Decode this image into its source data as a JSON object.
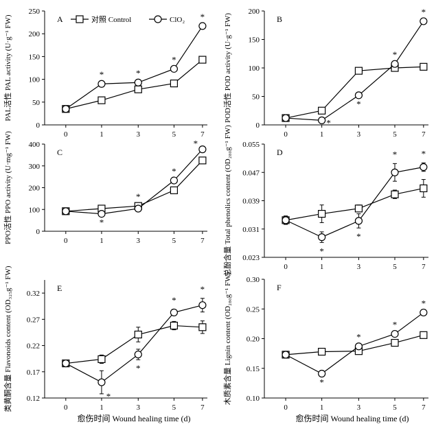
{
  "xlabel": "愈伤时间 Wound healing time (d)",
  "chart_data": [
    {
      "type": "line",
      "panel": "A",
      "ylabel": "PAL活性 PAL activity (U·g⁻¹ FW)",
      "ylim": [
        0,
        250
      ],
      "yticks": [
        0,
        50,
        100,
        150,
        200,
        250
      ],
      "ytick_labels": [
        "0",
        "50",
        "100",
        "150",
        "200",
        "250"
      ],
      "x": [
        0,
        1,
        3,
        5,
        7
      ],
      "series": [
        {
          "name": "对照 Control",
          "marker": "square",
          "values": [
            35,
            54,
            78,
            91,
            143
          ],
          "err": [
            4,
            5,
            5,
            6,
            6
          ]
        },
        {
          "name": "ClO₂",
          "marker": "circle",
          "values": [
            35,
            90,
            93,
            123,
            217
          ],
          "err": [
            4,
            6,
            5,
            4,
            5
          ]
        }
      ],
      "annotations": [
        {
          "x": 1,
          "y": 90,
          "text": "*",
          "pos": "above"
        },
        {
          "x": 3,
          "y": 93,
          "text": "*",
          "pos": "above"
        },
        {
          "x": 5,
          "y": 123,
          "text": "*",
          "pos": "above"
        },
        {
          "x": 7,
          "y": 217,
          "text": "*",
          "pos": "above"
        }
      ],
      "legend": "top"
    },
    {
      "type": "line",
      "panel": "B",
      "ylabel": "POD活性 POD activity (U·g⁻¹ FW)",
      "ylim": [
        0,
        200
      ],
      "yticks": [
        0,
        50,
        100,
        150,
        200
      ],
      "ytick_labels": [
        "0",
        "50",
        "100",
        "150",
        "200"
      ],
      "x": [
        0,
        1,
        3,
        5,
        7
      ],
      "series": [
        {
          "name": "对照 Control",
          "marker": "square",
          "values": [
            12,
            25,
            95,
            100,
            102
          ],
          "err": [
            2,
            2,
            2,
            3,
            2
          ]
        },
        {
          "name": "ClO₂",
          "marker": "circle",
          "values": [
            12,
            8,
            52,
            107,
            182
          ],
          "err": [
            2,
            1,
            2,
            3,
            3
          ]
        }
      ],
      "annotations": [
        {
          "x": 1,
          "y": 8,
          "text": "*",
          "pos": "right"
        },
        {
          "x": 3,
          "y": 52,
          "text": "*",
          "pos": "below"
        },
        {
          "x": 5,
          "y": 107,
          "text": "*",
          "pos": "above"
        },
        {
          "x": 7,
          "y": 182,
          "text": "*",
          "pos": "above"
        }
      ]
    },
    {
      "type": "line",
      "panel": "C",
      "ylabel": "PPO活性 PPO activity (U·mg⁻¹ FW)",
      "ylim": [
        0,
        400
      ],
      "yticks": [
        0,
        100,
        200,
        300,
        400
      ],
      "ytick_labels": [
        "0",
        "100",
        "200",
        "300",
        "400"
      ],
      "x": [
        0,
        1,
        3,
        5,
        7
      ],
      "series": [
        {
          "name": "对照 Control",
          "marker": "square",
          "values": [
            92,
            104,
            116,
            188,
            325
          ],
          "err": [
            6,
            6,
            7,
            6,
            6
          ]
        },
        {
          "name": "ClO₂",
          "marker": "circle",
          "values": [
            92,
            80,
            104,
            233,
            376
          ],
          "err": [
            6,
            5,
            6,
            6,
            5
          ]
        }
      ],
      "annotations": [
        {
          "x": 1,
          "y": 80,
          "text": "*",
          "pos": "below"
        },
        {
          "x": 3,
          "y": 116,
          "text": "*",
          "pos": "above"
        },
        {
          "x": 5,
          "y": 233,
          "text": "*",
          "pos": "above"
        },
        {
          "x": 7,
          "y": 376,
          "text": "*",
          "pos": "left"
        }
      ]
    },
    {
      "type": "line",
      "panel": "D",
      "ylabel": "总酚含量 Total phenolics content (OD₂₈₀g⁻¹ FW)",
      "ylim": [
        0.023,
        0.055
      ],
      "yticks": [
        0.023,
        0.031,
        0.039,
        0.047,
        0.055
      ],
      "ytick_labels": [
        "0.023",
        "0.031",
        "0.039",
        "0.047",
        "0.055"
      ],
      "x": [
        0,
        1,
        3,
        5,
        7
      ],
      "series": [
        {
          "name": "对照 Control",
          "marker": "square",
          "values": [
            0.0335,
            0.0353,
            0.0368,
            0.0408,
            0.0425
          ],
          "err": [
            0.0012,
            0.0025,
            0.001,
            0.0012,
            0.0025
          ]
        },
        {
          "name": "ClO₂",
          "marker": "circle",
          "values": [
            0.0335,
            0.0287,
            0.0333,
            0.047,
            0.0485
          ],
          "err": [
            0.001,
            0.0015,
            0.002,
            0.0025,
            0.0012
          ]
        }
      ],
      "annotations": [
        {
          "x": 1,
          "y": 0.0272,
          "text": "*",
          "pos": "below"
        },
        {
          "x": 3,
          "y": 0.0313,
          "text": "*",
          "pos": "below"
        },
        {
          "x": 5,
          "y": 0.0495,
          "text": "*",
          "pos": "above"
        },
        {
          "x": 7,
          "y": 0.0497,
          "text": "*",
          "pos": "above"
        }
      ]
    },
    {
      "type": "line",
      "panel": "E",
      "ylabel": "类黄酮含量 Flavonoids content (OD₃₂₅g⁻¹ FW)",
      "ylim": [
        0.12,
        0.345
      ],
      "yticks": [
        0.12,
        0.17,
        0.22,
        0.27,
        0.32
      ],
      "ytick_labels": [
        "0.12",
        "0.17",
        "0.22",
        "0.27",
        "0.32"
      ],
      "x": [
        0,
        1,
        3,
        5,
        7
      ],
      "series": [
        {
          "name": "对照 Control",
          "marker": "square",
          "values": [
            0.186,
            0.194,
            0.241,
            0.258,
            0.255
          ],
          "err": [
            0.006,
            0.008,
            0.014,
            0.008,
            0.012
          ]
        },
        {
          "name": "ClO₂",
          "marker": "circle",
          "values": [
            0.186,
            0.15,
            0.203,
            0.283,
            0.297
          ],
          "err": [
            0.006,
            0.022,
            0.01,
            0.006,
            0.013
          ]
        }
      ],
      "annotations": [
        {
          "x": 1,
          "y": 0.128,
          "text": "*",
          "pos": "right"
        },
        {
          "x": 3,
          "y": 0.193,
          "text": "*",
          "pos": "below"
        },
        {
          "x": 5,
          "y": 0.289,
          "text": "*",
          "pos": "above"
        },
        {
          "x": 7,
          "y": 0.31,
          "text": "*",
          "pos": "above"
        }
      ]
    },
    {
      "type": "line",
      "panel": "F",
      "ylabel": "木质素含量 Lignin content (OD₂₈₀g⁻¹ FW)",
      "ylim": [
        0.1,
        0.3
      ],
      "yticks": [
        0.1,
        0.15,
        0.2,
        0.25,
        0.3
      ],
      "ytick_labels": [
        "0.10",
        "0.15",
        "0.20",
        "0.25",
        "0.30"
      ],
      "x": [
        0,
        1,
        3,
        5,
        7
      ],
      "series": [
        {
          "name": "对照 Control",
          "marker": "square",
          "values": [
            0.173,
            0.178,
            0.179,
            0.193,
            0.206
          ],
          "err": [
            0.003,
            0.003,
            0.003,
            0.003,
            0.003
          ]
        },
        {
          "name": "ClO₂",
          "marker": "circle",
          "values": [
            0.173,
            0.141,
            0.187,
            0.208,
            0.244
          ],
          "err": [
            0.003,
            0.002,
            0.003,
            0.003,
            0.003
          ]
        }
      ],
      "annotations": [
        {
          "x": 1,
          "y": 0.141,
          "text": "*",
          "pos": "below"
        },
        {
          "x": 3,
          "y": 0.187,
          "text": "*",
          "pos": "above"
        },
        {
          "x": 5,
          "y": 0.208,
          "text": "*",
          "pos": "above"
        },
        {
          "x": 7,
          "y": 0.244,
          "text": "*",
          "pos": "above"
        }
      ]
    }
  ]
}
